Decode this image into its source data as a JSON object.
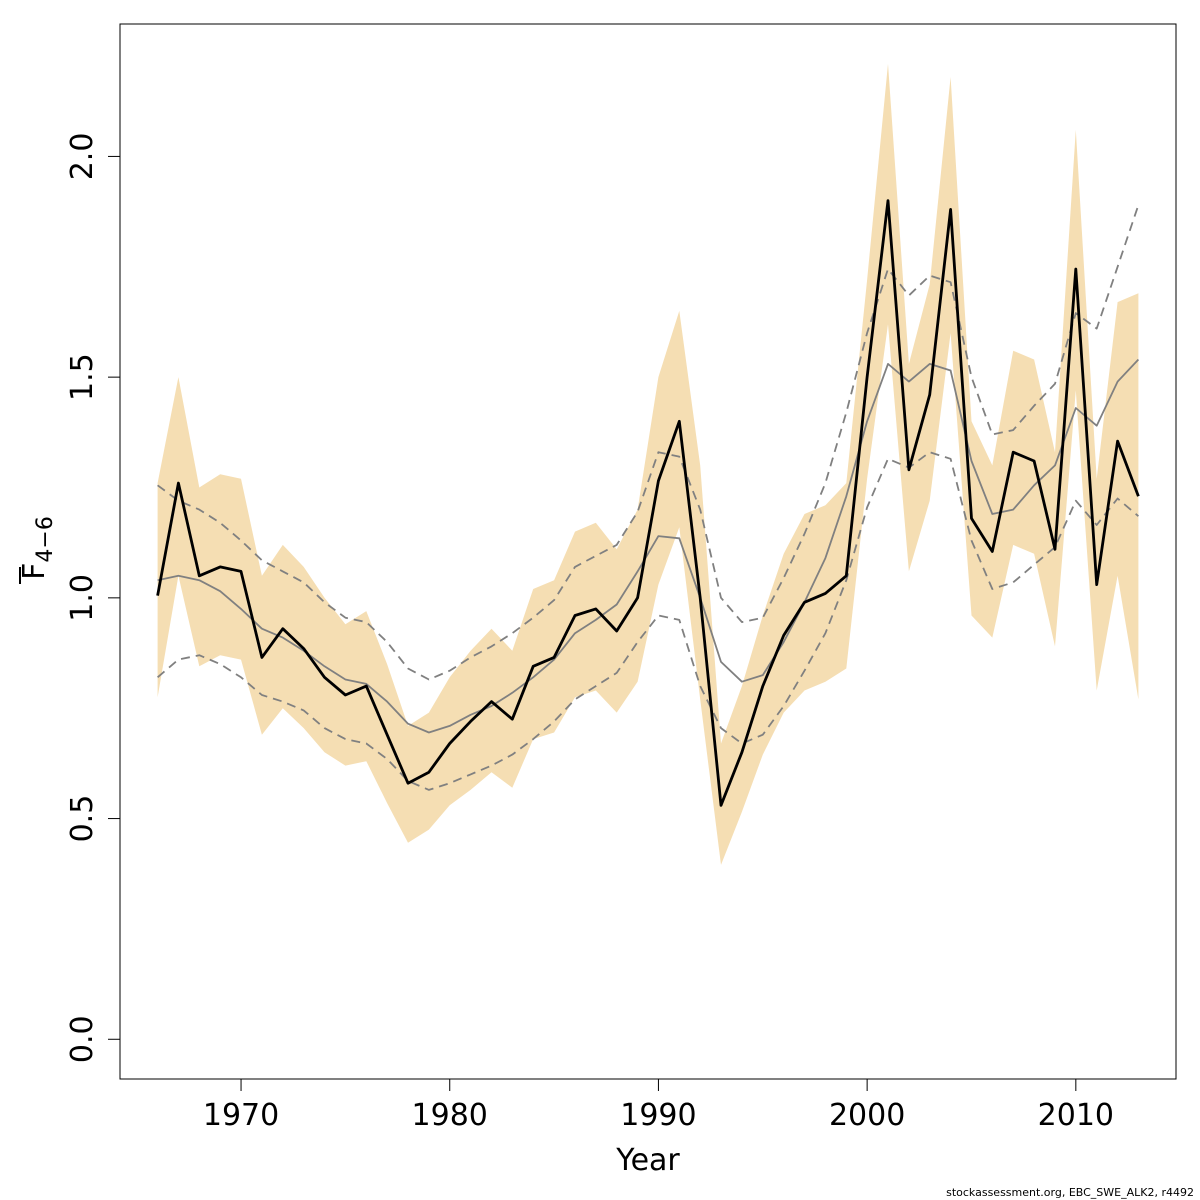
{
  "chart_data": {
    "type": "line",
    "xlabel": "Year",
    "ylabel_main": "F",
    "ylabel_sub": "4−6",
    "credit": "stockassessment.org, EBC_SWE_ALK2, r4492",
    "xlim": [
      1964.2,
      2014.8
    ],
    "ylim": [
      -0.09,
      2.3
    ],
    "x_ticks": [
      1970,
      1980,
      1990,
      2000,
      2010
    ],
    "x_tick_labels": [
      "1970",
      "1980",
      "1990",
      "2000",
      "2010"
    ],
    "y_ticks": [
      0.0,
      0.5,
      1.0,
      1.5,
      2.0
    ],
    "y_tick_labels": [
      "0.0",
      "0.5",
      "1.0",
      "1.5",
      "2.0"
    ],
    "grid": false,
    "legend": "none",
    "colors": {
      "band": "#f5deb3",
      "estimate": "#000000",
      "retro": "#808080",
      "retro_bounds": "#808080"
    },
    "x": [
      1966,
      1967,
      1968,
      1969,
      1970,
      1971,
      1972,
      1973,
      1974,
      1975,
      1976,
      1977,
      1978,
      1979,
      1980,
      1981,
      1982,
      1983,
      1984,
      1985,
      1986,
      1987,
      1988,
      1989,
      1990,
      1991,
      1992,
      1993,
      1994,
      1995,
      1996,
      1997,
      1998,
      1999,
      2000,
      2001,
      2002,
      2003,
      2004,
      2005,
      2006,
      2007,
      2008,
      2009,
      2010,
      2011,
      2012,
      2013
    ],
    "series": [
      {
        "role": "estimate",
        "style": "solid-thick",
        "values": [
          1.005,
          1.26,
          1.05,
          1.07,
          1.06,
          0.865,
          0.93,
          0.885,
          0.82,
          0.78,
          0.8,
          0.69,
          0.58,
          0.605,
          0.67,
          0.72,
          0.765,
          0.725,
          0.845,
          0.865,
          0.96,
          0.975,
          0.925,
          1.0,
          1.265,
          1.4,
          1.0,
          0.53,
          0.65,
          0.8,
          0.915,
          0.99,
          1.01,
          1.05,
          1.5,
          1.9,
          1.29,
          1.46,
          1.88,
          1.18,
          1.105,
          1.33,
          1.31,
          1.11,
          1.745,
          1.03,
          1.355,
          1.23
        ]
      },
      {
        "role": "upper-ci",
        "style": "band",
        "values": [
          1.26,
          1.5,
          1.25,
          1.28,
          1.27,
          1.05,
          1.12,
          1.07,
          1.0,
          0.94,
          0.97,
          0.85,
          0.71,
          0.74,
          0.82,
          0.88,
          0.93,
          0.88,
          1.02,
          1.04,
          1.15,
          1.17,
          1.11,
          1.2,
          1.5,
          1.65,
          1.3,
          0.67,
          0.8,
          0.96,
          1.1,
          1.19,
          1.21,
          1.26,
          1.72,
          2.21,
          1.53,
          1.71,
          2.18,
          1.4,
          1.3,
          1.56,
          1.54,
          1.33,
          2.06,
          1.27,
          1.67,
          1.69
        ]
      },
      {
        "role": "lower-ci",
        "style": "band",
        "values": [
          0.775,
          1.05,
          0.845,
          0.87,
          0.86,
          0.69,
          0.75,
          0.705,
          0.65,
          0.62,
          0.63,
          0.535,
          0.445,
          0.475,
          0.53,
          0.565,
          0.605,
          0.57,
          0.68,
          0.695,
          0.775,
          0.79,
          0.74,
          0.81,
          1.03,
          1.16,
          0.77,
          0.395,
          0.515,
          0.645,
          0.74,
          0.79,
          0.81,
          0.84,
          1.27,
          1.62,
          1.06,
          1.22,
          1.6,
          0.96,
          0.91,
          1.12,
          1.1,
          0.89,
          1.47,
          0.79,
          1.05,
          0.77
        ]
      },
      {
        "role": "retro-mean",
        "style": "solid-thin",
        "values": [
          1.04,
          1.05,
          1.04,
          1.015,
          0.975,
          0.93,
          0.91,
          0.88,
          0.845,
          0.815,
          0.805,
          0.765,
          0.715,
          0.695,
          0.71,
          0.735,
          0.755,
          0.785,
          0.82,
          0.86,
          0.92,
          0.95,
          0.985,
          1.06,
          1.14,
          1.135,
          1.0,
          0.855,
          0.81,
          0.825,
          0.9,
          0.99,
          1.09,
          1.23,
          1.4,
          1.53,
          1.49,
          1.53,
          1.515,
          1.31,
          1.19,
          1.2,
          1.255,
          1.3,
          1.43,
          1.39,
          1.49,
          1.54
        ]
      },
      {
        "role": "retro-upper",
        "style": "dashed",
        "values": [
          1.255,
          1.22,
          1.2,
          1.17,
          1.13,
          1.085,
          1.06,
          1.035,
          0.99,
          0.955,
          0.945,
          0.9,
          0.84,
          0.815,
          0.835,
          0.865,
          0.89,
          0.92,
          0.955,
          0.995,
          1.07,
          1.095,
          1.12,
          1.195,
          1.33,
          1.32,
          1.2,
          1.0,
          0.945,
          0.955,
          1.045,
          1.145,
          1.26,
          1.42,
          1.6,
          1.745,
          1.685,
          1.73,
          1.715,
          1.5,
          1.37,
          1.38,
          1.435,
          1.485,
          1.645,
          1.61,
          1.75,
          1.89
        ]
      },
      {
        "role": "retro-lower",
        "style": "dashed",
        "values": [
          0.82,
          0.86,
          0.87,
          0.85,
          0.82,
          0.78,
          0.765,
          0.745,
          0.705,
          0.68,
          0.67,
          0.635,
          0.585,
          0.565,
          0.58,
          0.6,
          0.62,
          0.645,
          0.68,
          0.72,
          0.77,
          0.8,
          0.83,
          0.9,
          0.96,
          0.95,
          0.8,
          0.705,
          0.67,
          0.69,
          0.755,
          0.835,
          0.92,
          1.04,
          1.205,
          1.315,
          1.295,
          1.33,
          1.315,
          1.13,
          1.02,
          1.035,
          1.075,
          1.115,
          1.22,
          1.165,
          1.225,
          1.185
        ]
      }
    ]
  }
}
